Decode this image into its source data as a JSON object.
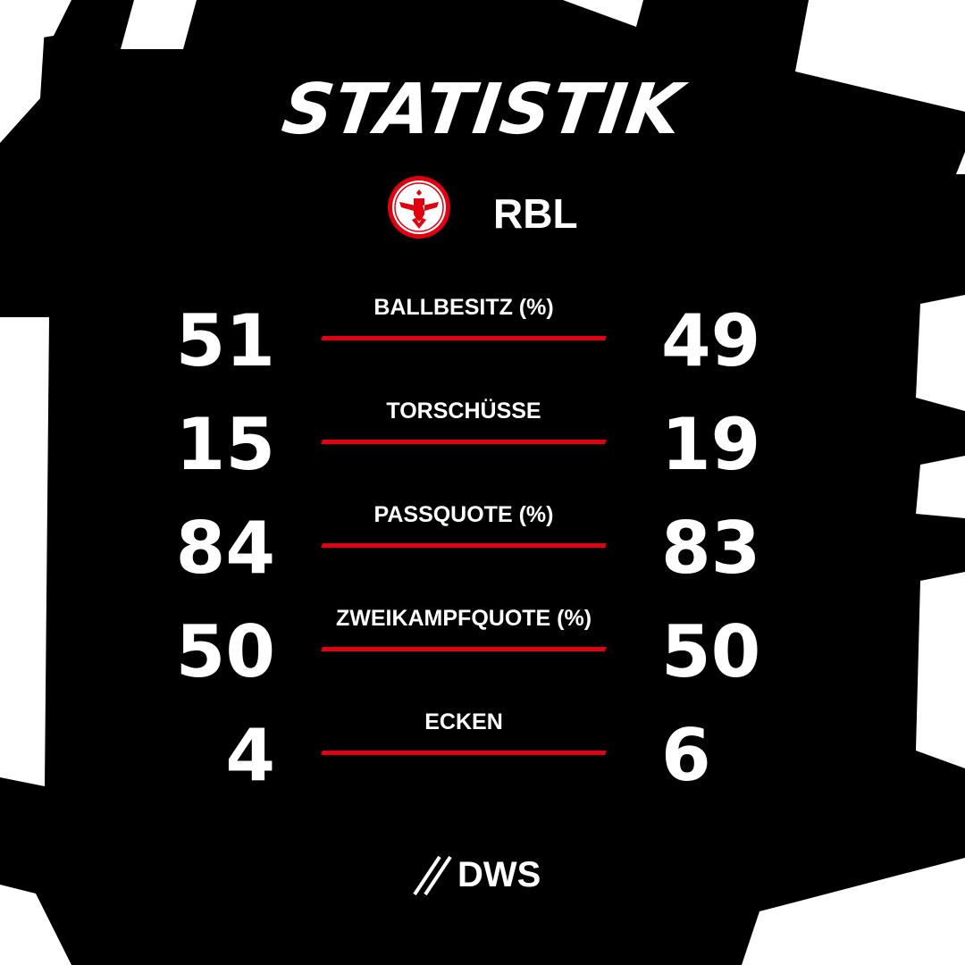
{
  "title": "STATISTIK",
  "home_team": {
    "crest": "eintracht-frankfurt-eagle-crest",
    "color": "#e1000f"
  },
  "away_team": {
    "abbr": "RBL"
  },
  "stats": [
    {
      "label": "BALLBESITZ (%)",
      "home": "51",
      "away": "49"
    },
    {
      "label": "TORSCHÜSSE",
      "home": "15",
      "away": "19"
    },
    {
      "label": "PASSQUOTE (%)",
      "home": "84",
      "away": "83"
    },
    {
      "label": "ZWEIKAMPFQUOTE (%)",
      "home": "50",
      "away": "50"
    },
    {
      "label": "ECKEN",
      "home": "4",
      "away": "6"
    }
  ],
  "sponsor": {
    "name": "DWS"
  },
  "colors": {
    "background": "#000000",
    "accent": "#e1000f",
    "text": "#ffffff"
  }
}
